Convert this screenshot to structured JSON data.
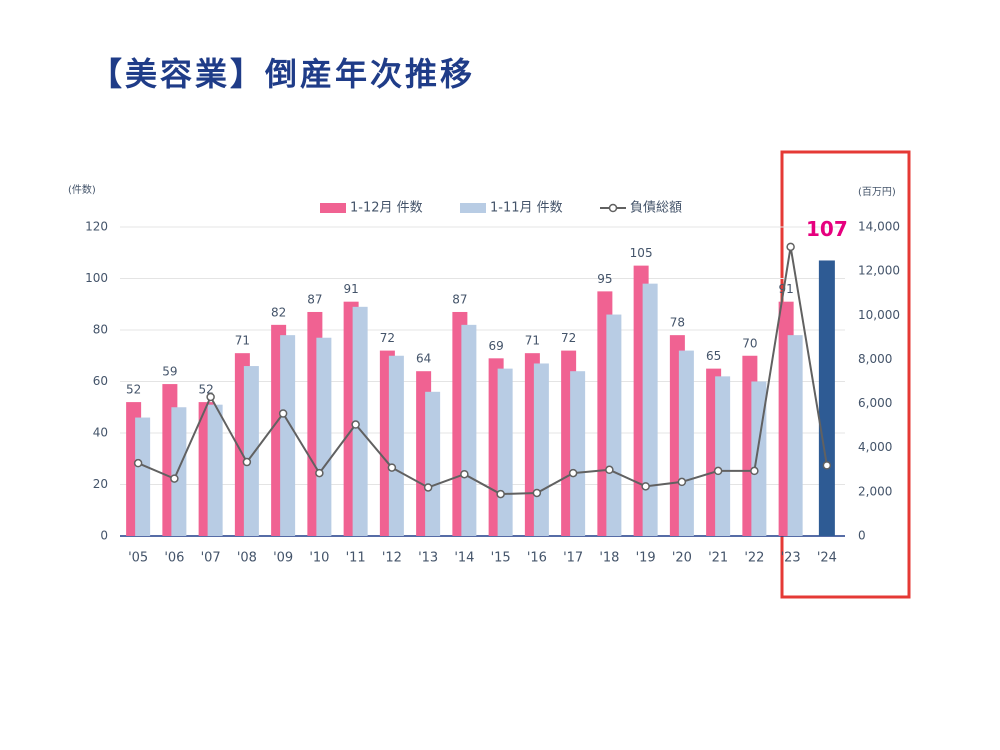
{
  "chart_data": {
    "type": "bar-line",
    "title": "【美容業】倒産年次推移",
    "y_label": "(件数)",
    "y2_label": "(百万円)",
    "categories": [
      "'05",
      "'06",
      "'07",
      "'08",
      "'09",
      "'10",
      "'11",
      "'12",
      "'13",
      "'14",
      "'15",
      "'16",
      "'17",
      "'18",
      "'19",
      "'20",
      "'21",
      "'22",
      "'23",
      "'24"
    ],
    "series": [
      {
        "name": "1-12月 件数",
        "color": "#f06292",
        "show_labels": true,
        "values": [
          52,
          59,
          52,
          71,
          82,
          87,
          91,
          72,
          64,
          87,
          69,
          71,
          72,
          95,
          105,
          78,
          65,
          70,
          91,
          null
        ]
      },
      {
        "name": "1-11月 件数",
        "color": "#b8cce4",
        "values": [
          46,
          50,
          51,
          66,
          78,
          77,
          89,
          70,
          56,
          82,
          65,
          67,
          64,
          86,
          98,
          72,
          62,
          60,
          78,
          107
        ]
      },
      {
        "name": "負債総額",
        "color": "#616161",
        "axis": "y2",
        "line": true,
        "values": [
          3300,
          2600,
          6300,
          3350,
          5550,
          2850,
          5050,
          3100,
          2200,
          2800,
          1900,
          1950,
          2850,
          3000,
          2250,
          2450,
          2950,
          2950,
          13100,
          3200
        ]
      }
    ],
    "highlight": {
      "series": 1,
      "index": 19,
      "color": "#2e5b94"
    },
    "ylim": [
      0,
      120
    ],
    "yticks": [
      0,
      20,
      40,
      60,
      80,
      100,
      120
    ],
    "y2lim": [
      0,
      14000
    ],
    "y2ticks": [
      0,
      {
        "value": 2000,
        "label": "2,000"
      },
      {
        "value": 4000,
        "label": "4,000"
      },
      {
        "value": 6000,
        "label": "6,000"
      },
      {
        "value": 8000,
        "label": "8,000"
      },
      {
        "value": 10000,
        "label": "10,000"
      },
      {
        "value": 12000,
        "label": "12,000"
      },
      {
        "value": 14000,
        "label": "14,000"
      }
    ],
    "grid": true
  }
}
